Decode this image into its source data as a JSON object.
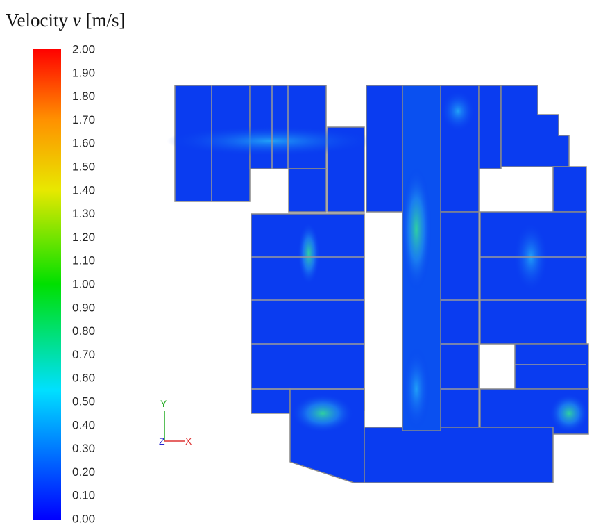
{
  "chart_data": {
    "type": "contour",
    "title": {
      "text": "Velocity",
      "symbol": "v",
      "unit": "[m/s]"
    },
    "clim": [
      0,
      2
    ],
    "cticks": [
      {
        "value": 0,
        "label": "0.00"
      },
      {
        "value": 0.1,
        "label": "0.10"
      },
      {
        "value": 0.2,
        "label": "0.20"
      },
      {
        "value": 0.3,
        "label": "0.30"
      },
      {
        "value": 0.4,
        "label": "0.40"
      },
      {
        "value": 0.5,
        "label": "0.50"
      },
      {
        "value": 0.6,
        "label": "0.60"
      },
      {
        "value": 0.7,
        "label": "0.70"
      },
      {
        "value": 0.8,
        "label": "0.80"
      },
      {
        "value": 0.9,
        "label": "0.90"
      },
      {
        "value": 1,
        "label": "1.00"
      },
      {
        "value": 1.1,
        "label": "1.10"
      },
      {
        "value": 1.2,
        "label": "1.20"
      },
      {
        "value": 1.3,
        "label": "1.30"
      },
      {
        "value": 1.4,
        "label": "1.40"
      },
      {
        "value": 1.5,
        "label": "1.50"
      },
      {
        "value": 1.6,
        "label": "1.60"
      },
      {
        "value": 1.7,
        "label": "1.70"
      },
      {
        "value": 1.8,
        "label": "1.80"
      },
      {
        "value": 1.9,
        "label": "1.90"
      },
      {
        "value": 2,
        "label": "2.00"
      }
    ],
    "colormap": [
      {
        "value": 0,
        "color": "#0000ff"
      },
      {
        "value": 0.55,
        "color": "#00e0ff"
      },
      {
        "value": 1,
        "color": "#00e000"
      },
      {
        "value": 1.4,
        "color": "#e8e800"
      },
      {
        "value": 1.7,
        "color": "#ff9000"
      },
      {
        "value": 2,
        "color": "#ff0000"
      }
    ],
    "axes_labels": {
      "y": "Y",
      "z": "Z",
      "x": "X"
    }
  }
}
